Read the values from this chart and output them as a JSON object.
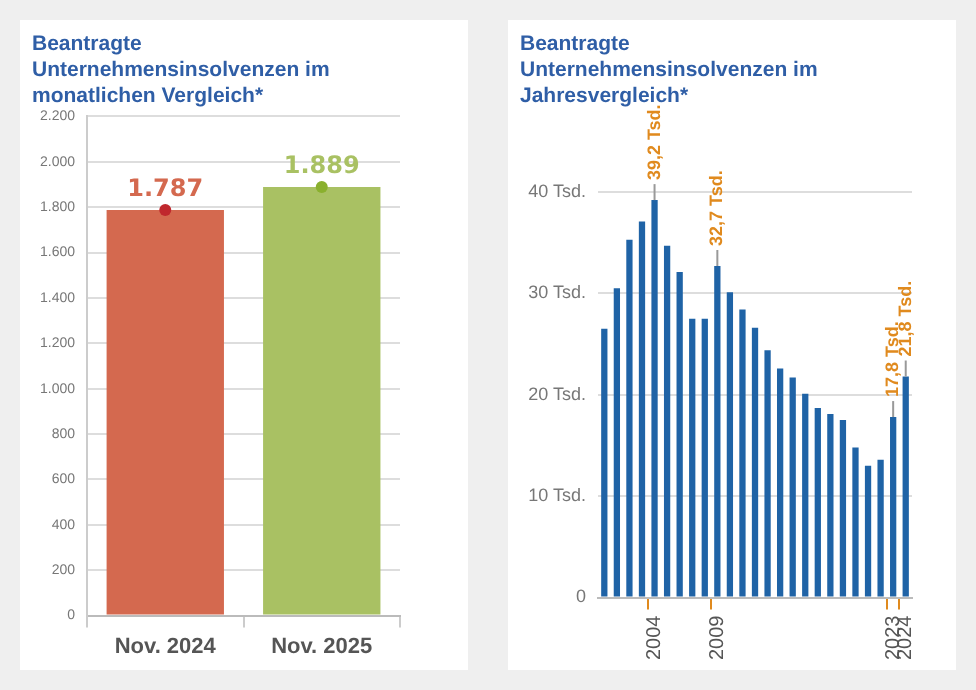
{
  "chart_data": [
    {
      "type": "bar",
      "title": "Beantragte Unternehmensinsolvenzen im monatlichen Vergleich*",
      "categories": [
        "Nov. 2024",
        "Nov. 2025"
      ],
      "series": [
        {
          "type": "bar",
          "values": [
            1787,
            1889
          ],
          "colors": [
            "#d4694f",
            "#a9c163"
          ],
          "value_labels": [
            "1.787",
            "1.889"
          ]
        },
        {
          "type": "scatter",
          "x": [
            "Nov. 2024",
            "Nov. 2025"
          ],
          "values": [
            1787,
            1889
          ],
          "colors": [
            "#c0282d",
            "#8ab02e"
          ]
        }
      ],
      "ylim": [
        0,
        2200
      ],
      "yticks": [
        {
          "value": 0,
          "label": "0"
        },
        {
          "value": 200,
          "label": "200"
        },
        {
          "value": 400,
          "label": "400"
        },
        {
          "value": 600,
          "label": "600"
        },
        {
          "value": 800,
          "label": "800"
        },
        {
          "value": 1000,
          "label": "1.000"
        },
        {
          "value": 1200,
          "label": "1.200"
        },
        {
          "value": 1400,
          "label": "1.400"
        },
        {
          "value": 1600,
          "label": "1.600"
        },
        {
          "value": 1800,
          "label": "1.800"
        },
        {
          "value": 2000,
          "label": "2.000"
        },
        {
          "value": 2200,
          "label": "2.200"
        }
      ],
      "grid": "y",
      "marker": "circle",
      "legend": false
    },
    {
      "type": "bar",
      "title": "Beantragte Unternehmensinsolvenzen im Jahresvergleich*",
      "categories": [
        null,
        null,
        null,
        null,
        "2004",
        null,
        null,
        null,
        null,
        "2009",
        null,
        null,
        null,
        null,
        null,
        null,
        null,
        null,
        null,
        null,
        null,
        null,
        null,
        "2023",
        "2024"
      ],
      "series": [
        {
          "type": "bar",
          "color": "#1f63a6",
          "values": [
            26.5,
            30.5,
            35.3,
            37.1,
            39.2,
            34.7,
            32.1,
            27.5,
            27.5,
            32.7,
            30.1,
            28.4,
            26.6,
            24.4,
            22.6,
            21.7,
            20.1,
            18.7,
            18.1,
            17.5,
            14.8,
            13.0,
            13.6,
            17.8,
            21.8
          ],
          "value_labels": [
            null,
            null,
            null,
            null,
            "39,2 Tsd.",
            null,
            null,
            null,
            null,
            "32,7 Tsd.",
            null,
            null,
            null,
            null,
            null,
            null,
            null,
            null,
            null,
            null,
            null,
            null,
            null,
            "17,8 Tsd.",
            "21,8 Tsd."
          ]
        }
      ],
      "ylim": [
        0,
        40
      ],
      "yticks": [
        0,
        {
          "value": 10,
          "label": "10 Tsd."
        },
        {
          "value": 20,
          "label": "20 Tsd."
        },
        {
          "value": 30,
          "label": "30 Tsd."
        },
        {
          "value": 40,
          "label": "40 Tsd."
        }
      ],
      "grid": "y",
      "legend": false
    }
  ]
}
